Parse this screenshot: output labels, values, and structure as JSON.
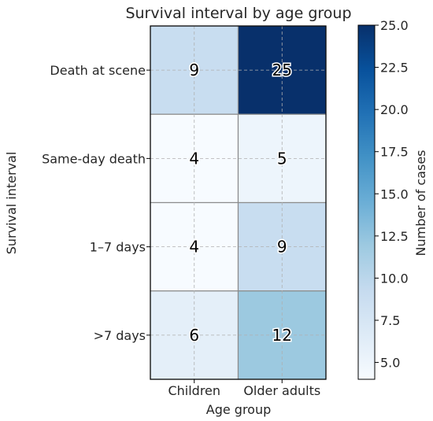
{
  "chart_data": {
    "type": "heatmap",
    "title": "Survival interval by age group",
    "xlabel": "Age group",
    "ylabel": "Survival interval",
    "x_categories": [
      "Children",
      "Older adults"
    ],
    "y_categories": [
      "Death at scene",
      "Same-day death",
      "1–7 days",
      ">7 days"
    ],
    "values": [
      [
        9,
        25
      ],
      [
        4,
        5
      ],
      [
        4,
        9
      ],
      [
        6,
        12
      ]
    ],
    "colorbar": {
      "label": "Number of cases",
      "range": [
        4,
        25
      ],
      "ticks": [
        "5.0",
        "7.5",
        "10.0",
        "12.5",
        "15.0",
        "17.5",
        "20.0",
        "22.5",
        "25.0"
      ],
      "colormap": "Blues",
      "colors": [
        "#f7fbff",
        "#deebf7",
        "#c6dbef",
        "#9ecae1",
        "#6baed6",
        "#4292c6",
        "#2171b5",
        "#08519c",
        "#08306b"
      ]
    },
    "grid": true
  }
}
